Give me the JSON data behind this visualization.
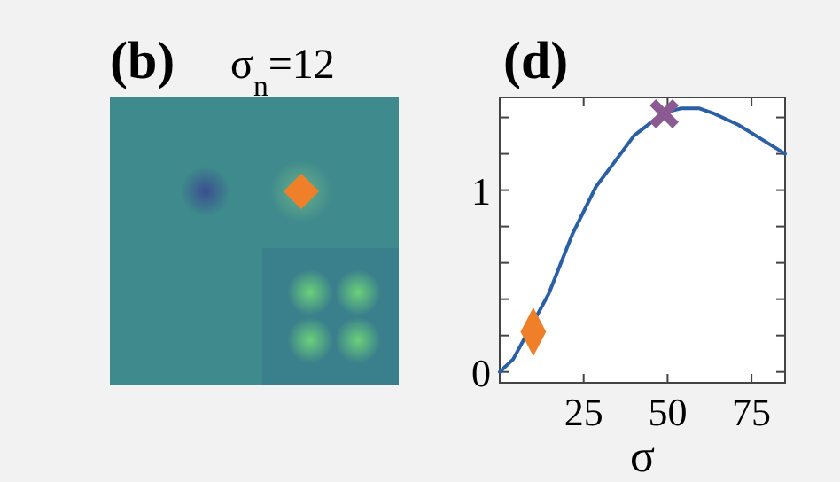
{
  "chart_data": [
    {
      "type": "other",
      "title": "(b)",
      "subtitle": "σ$_{n}$=12"
    },
    {
      "type": "line",
      "title": "(d)",
      "xlabel": "σ",
      "xlim": [
        0,
        85
      ],
      "ylim": [
        -0.06,
        1.51
      ],
      "xticks": [
        25,
        50,
        75
      ],
      "yticks": [
        0,
        {
          "value": 0.2,
          "label": null
        },
        {
          "value": 0.4,
          "label": null
        },
        {
          "value": 0.6,
          "label": null
        },
        {
          "value": 0.8,
          "label": null
        },
        1,
        {
          "value": 1.2,
          "label": null
        },
        {
          "value": 1.4,
          "label": null
        }
      ],
      "series": [
        {
          "type": "line",
          "color": "#2a5fa5",
          "marker": "none",
          "x": [
            0,
            4,
            14.6,
            21.7,
            28.7,
            34,
            40,
            46.3,
            49.8,
            54,
            59.5,
            64,
            71,
            78,
            85
          ],
          "values": [
            0,
            0.07,
            0.43,
            0.76,
            1.02,
            1.15,
            1.3,
            1.39,
            1.43,
            1.45,
            1.45,
            1.42,
            1.36,
            1.28,
            1.2
          ]
        },
        {
          "type": "scatter",
          "color": "#f07f2a",
          "marker": "diamond",
          "x": [
            10
          ],
          "values": [
            0.22
          ]
        },
        {
          "type": "scatter",
          "color": "#8c5a93",
          "marker": "cross",
          "x": [
            49
          ],
          "values": [
            1.42
          ]
        }
      ]
    }
  ]
}
